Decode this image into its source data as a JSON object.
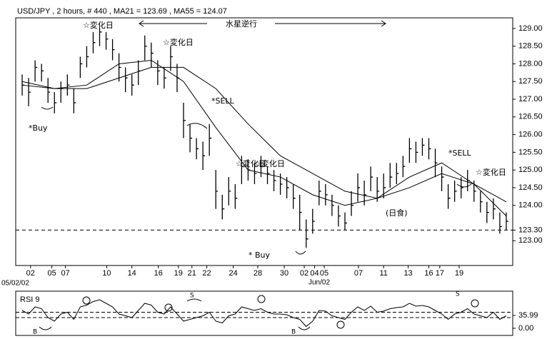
{
  "chart_data": {
    "type": "ohlc",
    "title": "USD/JPY , 2 hours, # 440 , MA21 = 123.69 , MA55 = 124.07",
    "x": [
      0,
      1,
      2,
      3,
      4,
      5,
      6,
      7,
      8,
      9,
      10,
      11,
      12,
      13,
      14,
      15,
      16,
      17,
      18,
      19,
      20,
      21,
      22,
      23,
      24,
      25,
      26,
      27,
      28,
      29,
      30,
      31,
      32,
      33,
      34,
      35,
      36,
      37,
      38,
      39,
      40,
      41,
      42,
      43,
      44,
      45,
      46,
      47,
      48,
      49,
      50,
      51,
      52,
      53,
      54,
      55,
      56,
      57,
      58,
      59,
      60,
      61,
      62,
      63,
      64,
      65,
      66,
      67,
      68,
      69,
      70,
      71,
      72,
      73,
      74,
      75
    ],
    "high": [
      127.7,
      127.6,
      128.1,
      128.0,
      127.6,
      127.2,
      127.5,
      127.7,
      127.3,
      128.2,
      128.5,
      128.9,
      129.0,
      128.9,
      128.7,
      128.3,
      127.9,
      127.7,
      128.1,
      128.8,
      128.6,
      128.1,
      127.9,
      128.5,
      128.0,
      126.9,
      126.3,
      125.9,
      125.8,
      126.3,
      125.0,
      124.3,
      124.8,
      124.6,
      125.4,
      125.3,
      125.2,
      125.4,
      125.1,
      125.0,
      124.9,
      124.8,
      124.6,
      124.3,
      123.6,
      123.9,
      124.7,
      124.6,
      124.3,
      124.0,
      123.8,
      124.4,
      124.9,
      124.7,
      125.1,
      124.8,
      124.9,
      125.2,
      125.2,
      125.4,
      125.9,
      125.8,
      125.9,
      125.9,
      125.6,
      125.1,
      124.6,
      124.7,
      124.8,
      125.0,
      124.7,
      124.4,
      124.1,
      124.2,
      123.8,
      123.8
    ],
    "low": [
      127.1,
      126.8,
      127.5,
      127.5,
      126.9,
      126.6,
      126.9,
      127.1,
      126.6,
      127.6,
      127.9,
      128.3,
      128.5,
      128.4,
      128.1,
      127.5,
      127.2,
      127.1,
      127.4,
      128.1,
      127.9,
      127.4,
      127.3,
      127.8,
      127.2,
      125.9,
      125.5,
      125.3,
      125.0,
      125.4,
      123.9,
      123.6,
      124.0,
      123.9,
      124.6,
      124.7,
      124.6,
      124.8,
      124.6,
      124.4,
      124.3,
      124.2,
      123.9,
      123.3,
      122.8,
      123.2,
      124.0,
      124.0,
      123.7,
      123.4,
      123.3,
      123.7,
      124.1,
      124.0,
      124.4,
      124.1,
      124.2,
      124.5,
      124.6,
      124.8,
      125.2,
      125.2,
      125.4,
      125.3,
      124.8,
      124.4,
      123.9,
      124.1,
      124.2,
      124.4,
      124.1,
      123.8,
      123.5,
      123.6,
      123.2,
      123.3
    ],
    "close": [
      127.4,
      127.2,
      127.9,
      127.8,
      127.2,
      126.9,
      127.3,
      127.4,
      126.9,
      128.0,
      128.2,
      128.6,
      128.9,
      128.7,
      128.4,
      127.9,
      127.6,
      127.4,
      127.8,
      128.5,
      128.3,
      127.8,
      127.6,
      128.2,
      127.6,
      126.4,
      125.9,
      125.6,
      125.4,
      125.9,
      124.4,
      123.9,
      124.4,
      124.2,
      125.1,
      125.0,
      124.9,
      125.1,
      124.9,
      124.7,
      124.6,
      124.5,
      124.2,
      123.8,
      123.05,
      123.55,
      124.4,
      124.3,
      124.0,
      123.7,
      123.5,
      124.0,
      124.5,
      124.3,
      124.8,
      124.4,
      124.5,
      124.8,
      124.9,
      125.1,
      125.6,
      125.5,
      125.7,
      125.6,
      125.2,
      124.8,
      124.2,
      124.4,
      124.5,
      124.7,
      124.4,
      124.1,
      123.8,
      123.9,
      123.4,
      123.55
    ],
    "ma21": {
      "x": [
        0,
        5,
        10,
        15,
        20,
        25,
        30,
        35,
        40,
        45,
        50,
        55,
        60,
        65,
        70,
        75
      ],
      "values": [
        127.5,
        127.3,
        127.4,
        128.0,
        128.1,
        127.5,
        126.2,
        125.0,
        124.8,
        124.3,
        124.0,
        124.2,
        124.8,
        125.2,
        124.6,
        123.7
      ]
    },
    "ma55": {
      "x": [
        0,
        5,
        10,
        15,
        20,
        25,
        30,
        35,
        40,
        45,
        50,
        55,
        60,
        65,
        70,
        75
      ],
      "values": [
        127.4,
        127.3,
        127.3,
        127.6,
        127.9,
        127.9,
        127.3,
        126.3,
        125.4,
        124.9,
        124.4,
        124.2,
        124.5,
        124.9,
        124.6,
        124.1
      ]
    },
    "level_line": 123.3,
    "xlim": [
      -1,
      76
    ],
    "ylim": [
      122.3,
      129.3
    ],
    "yticks": [
      {
        "value": 123,
        "label": "123.00"
      },
      {
        "value": 123.3,
        "label": "123.30"
      },
      {
        "value": 124,
        "label": "124.00"
      },
      {
        "value": 124.5,
        "label": "124.50"
      },
      {
        "value": 125,
        "label": "125.00"
      },
      {
        "value": 125.5,
        "label": "125.50"
      },
      {
        "value": 126,
        "label": "126.00"
      },
      {
        "value": 126.5,
        "label": "126.50"
      },
      {
        "value": 127,
        "label": "127.00"
      },
      {
        "value": 127.5,
        "label": "127.50"
      },
      {
        "value": 128,
        "label": "128.00"
      },
      {
        "value": 128.5,
        "label": "128.50"
      },
      {
        "value": 129,
        "label": "129.00"
      }
    ],
    "xticks": [
      {
        "value": 1.3,
        "label": "02"
      },
      {
        "value": 4.6,
        "label": "05"
      },
      {
        "value": 6.7,
        "label": "07"
      },
      {
        "value": 13.1,
        "label": "10"
      },
      {
        "value": 17.0,
        "label": "14"
      },
      {
        "value": 21.1,
        "label": "16"
      },
      {
        "value": 24.2,
        "label": "19"
      },
      {
        "value": 26.3,
        "label": "21"
      },
      {
        "value": 28.6,
        "label": "22"
      },
      {
        "value": 32.7,
        "label": "24"
      },
      {
        "value": 36.5,
        "label": "28"
      },
      {
        "value": 40.6,
        "label": "30"
      },
      {
        "value": 43.7,
        "label": "02"
      },
      {
        "value": 45.3,
        "label": "04"
      },
      {
        "value": 46.8,
        "label": "05"
      },
      {
        "value": 52.1,
        "label": "07"
      },
      {
        "value": 56.0,
        "label": "11"
      },
      {
        "value": 59.8,
        "label": "13"
      },
      {
        "value": 63.0,
        "label": "16"
      },
      {
        "value": 64.7,
        "label": "17"
      },
      {
        "value": 67.7,
        "label": "19"
      }
    ],
    "start_date_label": "05/02/02",
    "month_label": "Jun/02",
    "annotations": [
      "☆変化日",
      "☆変化日",
      "水星逆行",
      "*SELL",
      "*Buy",
      "☆変化日",
      "☆変化日",
      "(日食)",
      "*SELL",
      "☆変化日",
      "* Buy"
    ],
    "rsi": {
      "label": "RSI 9",
      "values": [
        50,
        40,
        60,
        55,
        30,
        20,
        40,
        45,
        25,
        60,
        65,
        75,
        80,
        70,
        60,
        40,
        35,
        30,
        50,
        70,
        65,
        45,
        40,
        60,
        40,
        20,
        25,
        30,
        35,
        45,
        20,
        15,
        35,
        40,
        60,
        55,
        50,
        55,
        45,
        40,
        40,
        38,
        30,
        25,
        5,
        20,
        50,
        48,
        35,
        30,
        25,
        45,
        60,
        50,
        62,
        45,
        48,
        55,
        58,
        60,
        70,
        62,
        64,
        60,
        50,
        40,
        25,
        40,
        45,
        55,
        40,
        35,
        30,
        45,
        25,
        35
      ],
      "ylim": [
        -20,
        104
      ],
      "yticks": [
        {
          "value": 35.99,
          "label": "35.99"
        },
        {
          "value": 0,
          "label": "0.00"
        }
      ],
      "levels": [
        45,
        30
      ],
      "annotations": [
        "B",
        "S",
        "B",
        "S"
      ]
    }
  }
}
